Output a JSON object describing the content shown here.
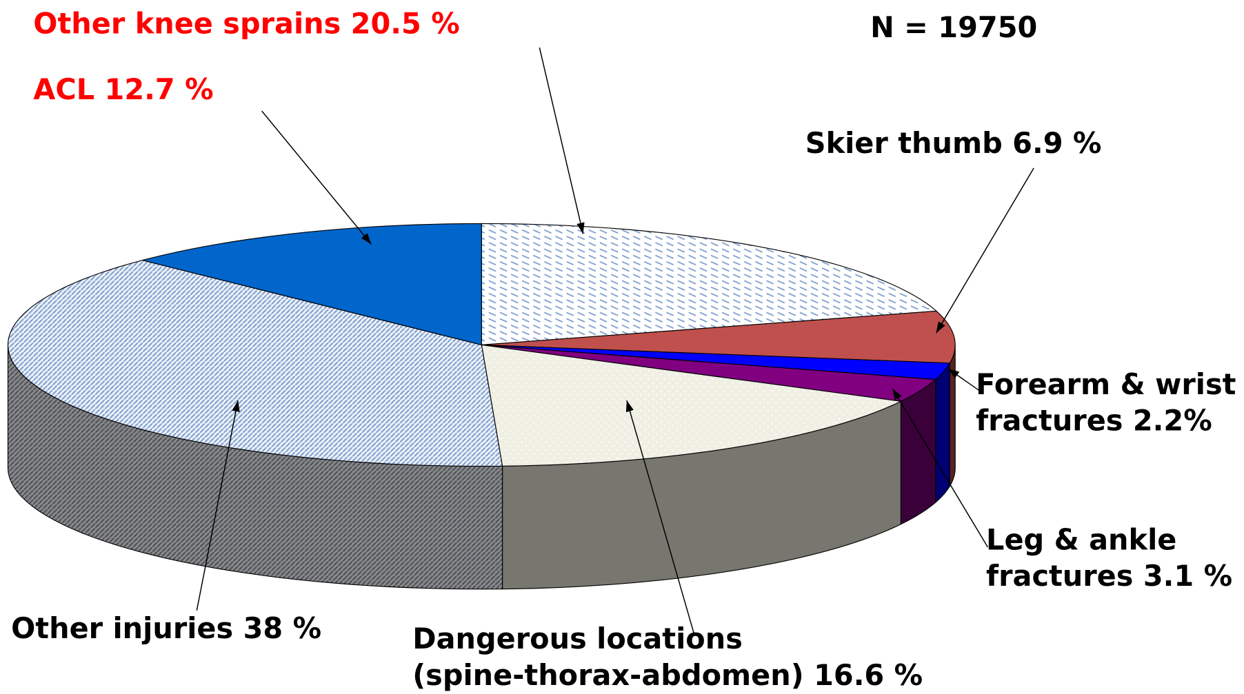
{
  "chart_data": {
    "type": "pie3d",
    "note": "N = 19750",
    "labels": [
      [
        "Other knee sprains 20.5 %"
      ],
      [
        "Skier thumb 6.9 %"
      ],
      [
        "Forearm & wrist",
        "fractures 2.2%"
      ],
      [
        "Leg & ankle",
        "fractures 3.1 %"
      ],
      [
        "Dangerous locations",
        "(spine-thorax-abdomen) 16.6 %"
      ],
      [
        "Other injuries 38 %"
      ],
      [
        "ACL 12.7 %"
      ]
    ],
    "values": [
      20.5,
      6.9,
      2.2,
      3.1,
      16.6,
      38,
      12.7
    ],
    "colors": [
      "#ffffff",
      "#c0504d",
      "#0000ff",
      "#800080",
      "#efefe4",
      "#dfe6f2",
      "#0066cc"
    ],
    "patterns": [
      "dashes",
      null,
      null,
      null,
      "dots",
      "diagonal",
      null
    ],
    "label_colors": [
      "#ff0000",
      "#000000",
      "#000000",
      "#000000",
      "#000000",
      "#000000",
      "#ff0000"
    ]
  }
}
